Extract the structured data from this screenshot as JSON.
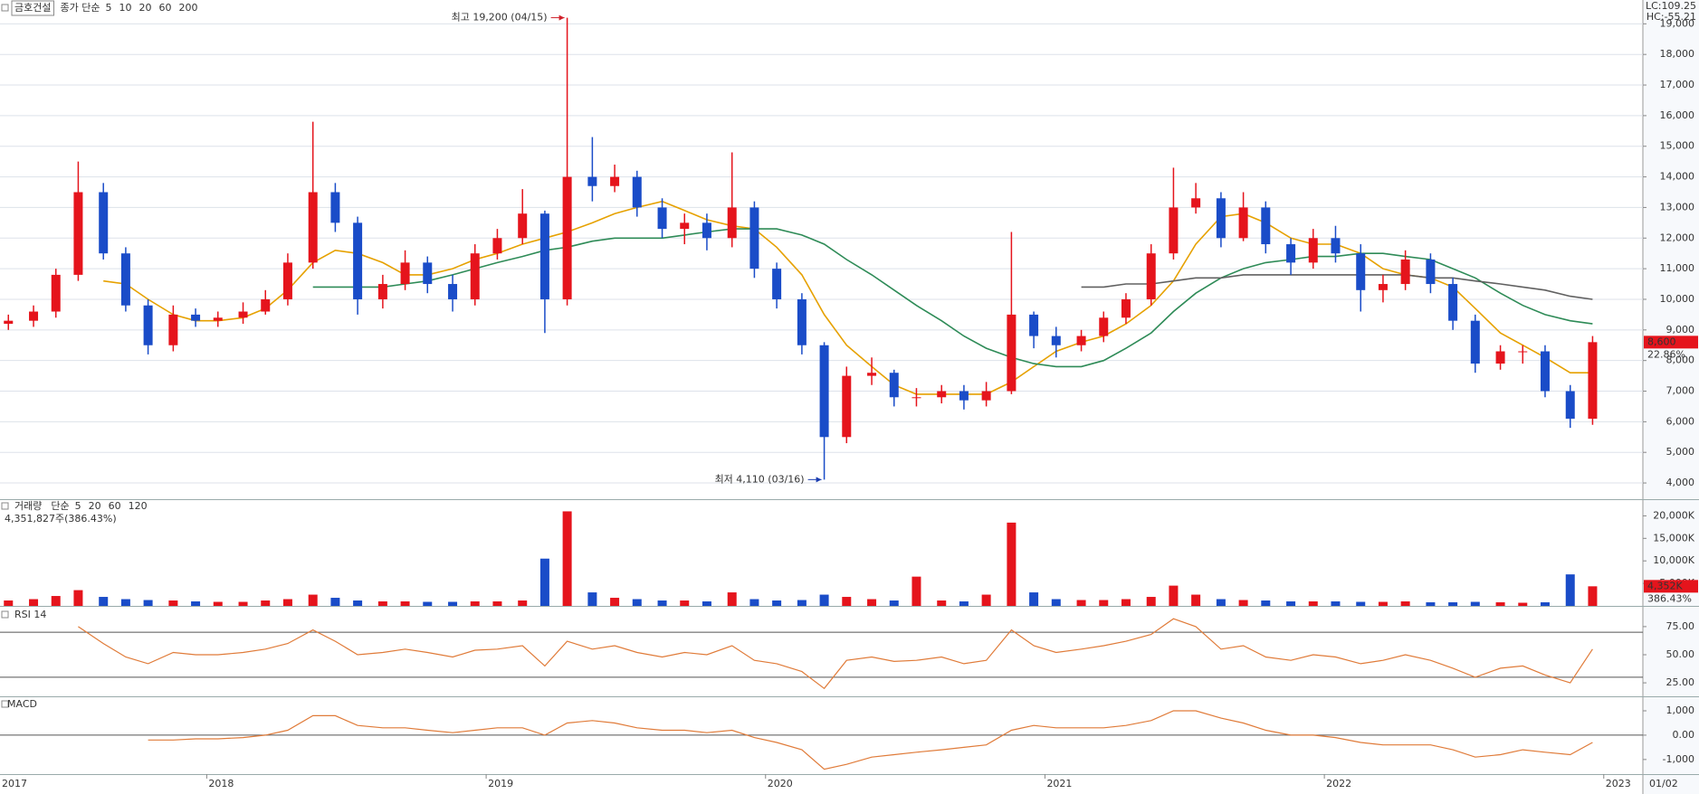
{
  "chart_data": [
    {
      "type": "candlestick",
      "title": "금호건설",
      "subtitle": "종가 단순",
      "ma_legend": [
        {
          "label": "5",
          "color": "#c000c0"
        },
        {
          "label": "10",
          "color": "#1f3a93"
        },
        {
          "label": "20",
          "color": "#e6a100"
        },
        {
          "label": "60",
          "color": "#2e8b57"
        },
        {
          "label": "200",
          "color": "#808080"
        }
      ],
      "indicators": [
        {
          "text": "LC:109.25",
          "color": "#d0202a"
        },
        {
          "text": "HC:-55.21",
          "color": "#2050c0"
        }
      ],
      "x": [
        2017.29,
        2017.38,
        2017.46,
        2017.54,
        2017.63,
        2017.71,
        2017.79,
        2017.88,
        2017.96,
        2018.04,
        2018.13,
        2018.21,
        2018.29,
        2018.38,
        2018.46,
        2018.54,
        2018.63,
        2018.71,
        2018.79,
        2018.88,
        2018.96,
        2019.04,
        2019.13,
        2019.21,
        2019.29,
        2019.38,
        2019.46,
        2019.54,
        2019.63,
        2019.71,
        2019.79,
        2019.88,
        2019.96,
        2020.04,
        2020.13,
        2020.21,
        2020.29,
        2020.38,
        2020.46,
        2020.54,
        2020.63,
        2020.71,
        2020.79,
        2020.88,
        2020.96,
        2021.04,
        2021.13,
        2021.21,
        2021.29,
        2021.38,
        2021.46,
        2021.54,
        2021.63,
        2021.71,
        2021.79,
        2021.88,
        2021.96,
        2022.04,
        2022.13,
        2022.21,
        2022.29,
        2022.38,
        2022.46,
        2022.54,
        2022.63,
        2022.71,
        2022.79,
        2022.88,
        2022.96
      ],
      "open": [
        9200,
        9300,
        9600,
        10800,
        13500,
        11500,
        9800,
        8500,
        9500,
        9300,
        9400,
        9600,
        10000,
        11200,
        13500,
        12500,
        10000,
        10500,
        11200,
        10500,
        10000,
        11500,
        12000,
        12800,
        10000,
        14000,
        13700,
        14000,
        13000,
        12300,
        12500,
        12000,
        13000,
        11000,
        10000,
        8500,
        5500,
        7500,
        7600,
        6800,
        6800,
        7000,
        6700,
        7000,
        9500,
        8800,
        8500,
        8800,
        9400,
        10000,
        11500,
        13000,
        13300,
        12000,
        13000,
        11800,
        11200,
        12000,
        11500,
        10300,
        10500,
        11300,
        10500,
        9300,
        7900,
        8300,
        8300,
        7000,
        6100
      ],
      "high": [
        9500,
        9800,
        11000,
        14500,
        13800,
        11700,
        10000,
        9800,
        9700,
        9600,
        9900,
        10300,
        11500,
        15800,
        13800,
        12700,
        10800,
        11600,
        11400,
        10800,
        11800,
        12300,
        13600,
        12900,
        19200,
        15300,
        14400,
        14200,
        13300,
        12800,
        12800,
        14800,
        13200,
        11200,
        10200,
        8600,
        7800,
        8100,
        7700,
        7100,
        7200,
        7200,
        7300,
        12200,
        9600,
        9100,
        9000,
        9600,
        10200,
        11800,
        14300,
        13800,
        13500,
        13500,
        13200,
        12000,
        12300,
        12400,
        11800,
        10800,
        11600,
        11500,
        10700,
        9500,
        8500,
        8500,
        8500,
        7200,
        8800
      ],
      "low": [
        9000,
        9100,
        9400,
        10600,
        11300,
        9600,
        8200,
        8300,
        9100,
        9100,
        9200,
        9500,
        9800,
        11000,
        12200,
        9500,
        9700,
        10300,
        10200,
        9600,
        9800,
        11300,
        11800,
        8900,
        9800,
        13200,
        13500,
        12700,
        12000,
        11800,
        11600,
        11700,
        10700,
        9700,
        8200,
        4110,
        5300,
        7200,
        6500,
        6500,
        6600,
        6400,
        6500,
        6900,
        8400,
        8100,
        8300,
        8600,
        9200,
        9800,
        11300,
        12800,
        11700,
        11900,
        11500,
        10800,
        11000,
        11200,
        9600,
        9900,
        10300,
        10200,
        9000,
        7600,
        7700,
        7900,
        6800,
        5800,
        5900
      ],
      "close": [
        9300,
        9600,
        10800,
        13500,
        11500,
        9800,
        8500,
        9500,
        9300,
        9400,
        9600,
        10000,
        11200,
        13500,
        12500,
        10000,
        10500,
        11200,
        10500,
        10000,
        11500,
        12000,
        12800,
        10000,
        14000,
        13700,
        14000,
        13000,
        12300,
        12500,
        12000,
        13000,
        11000,
        10000,
        8500,
        5500,
        7500,
        7600,
        6800,
        6800,
        7000,
        6700,
        7000,
        9500,
        8800,
        8500,
        8800,
        9400,
        10000,
        11500,
        13000,
        13300,
        12000,
        13000,
        11800,
        11200,
        12000,
        11500,
        10300,
        10500,
        11300,
        10500,
        9300,
        7900,
        8300,
        8300,
        7000,
        6100,
        8600
      ],
      "up_color": "#e5141c",
      "down_color": "#1a4cc8",
      "series": [
        {
          "color": "#e6a100",
          "values": [
            null,
            null,
            null,
            null,
            10600,
            10500,
            10000,
            9500,
            9300,
            9300,
            9400,
            9700,
            10300,
            11200,
            11600,
            11500,
            11200,
            10800,
            10800,
            11000,
            11300,
            11500,
            11800,
            12000,
            12200,
            12500,
            12800,
            13000,
            13200,
            12900,
            12600,
            12400,
            12300,
            11700,
            10800,
            9500,
            8500,
            7800,
            7200,
            6900,
            6900,
            6900,
            6900,
            7300,
            7800,
            8300,
            8600,
            8800,
            9200,
            9800,
            10600,
            11800,
            12700,
            12800,
            12500,
            12000,
            11800,
            11800,
            11500,
            11000,
            10800,
            10700,
            10400,
            9700,
            8900,
            8500,
            8100,
            7600,
            7600
          ]
        },
        {
          "color": "#2e8b57",
          "values": [
            null,
            null,
            null,
            null,
            null,
            null,
            null,
            null,
            null,
            null,
            null,
            null,
            null,
            10400,
            10400,
            10400,
            10400,
            10500,
            10600,
            10800,
            11000,
            11200,
            11400,
            11600,
            11700,
            11900,
            12000,
            12000,
            12000,
            12100,
            12200,
            12300,
            12300,
            12300,
            12100,
            11800,
            11300,
            10800,
            10300,
            9800,
            9300,
            8800,
            8400,
            8100,
            7900,
            7800,
            7800,
            8000,
            8400,
            8900,
            9600,
            10200,
            10700,
            11000,
            11200,
            11300,
            11400,
            11400,
            11500,
            11500,
            11400,
            11300,
            11000,
            10700,
            10200,
            9800,
            9500,
            9300,
            9200
          ]
        },
        {
          "color": "#606060",
          "values": [
            null,
            null,
            null,
            null,
            null,
            null,
            null,
            null,
            null,
            null,
            null,
            null,
            null,
            null,
            null,
            null,
            null,
            null,
            null,
            null,
            null,
            null,
            null,
            null,
            null,
            null,
            null,
            null,
            null,
            null,
            null,
            null,
            null,
            null,
            null,
            null,
            null,
            null,
            null,
            null,
            null,
            null,
            null,
            null,
            null,
            null,
            10400,
            10400,
            10500,
            10500,
            10600,
            10700,
            10700,
            10800,
            10800,
            10800,
            10800,
            10800,
            10800,
            10800,
            10800,
            10700,
            10700,
            10600,
            10500,
            10400,
            10300,
            10100,
            10000
          ]
        }
      ],
      "ylim": [
        3470,
        19660
      ],
      "yticks": [
        {
          "value": 4000,
          "label": "4,000"
        },
        {
          "value": 5000,
          "label": "5,000"
        },
        {
          "value": 6000,
          "label": "6,000"
        },
        {
          "value": 7000,
          "label": "7,000"
        },
        {
          "value": 8000,
          "label": "8,000"
        },
        {
          "value": 9000,
          "label": "9,000"
        },
        {
          "value": 10000,
          "label": "10,000"
        },
        {
          "value": 11000,
          "label": "11,000"
        },
        {
          "value": 12000,
          "label": "12,000"
        },
        {
          "value": 13000,
          "label": "13,000"
        },
        {
          "value": 14000,
          "label": "14,000"
        },
        {
          "value": 15000,
          "label": "15,000"
        },
        {
          "value": 16000,
          "label": "16,000"
        },
        {
          "value": 17000,
          "label": "17,000"
        },
        {
          "value": 18000,
          "label": "18,000"
        },
        {
          "value": 19000,
          "label": "19,000"
        }
      ],
      "grid": true,
      "xlim": [
        2017.26,
        2023.14
      ],
      "xticks": [
        2018,
        2019,
        2020,
        2021,
        2022,
        2023
      ],
      "x_start_label": "2017",
      "x_end_label": "01/02",
      "annotations": [
        {
          "text": "최고 19,200 (04/15)",
          "x": 2019.29,
          "y": 19200,
          "color": "#d0202a"
        },
        {
          "text": "최저 4,110 (03/16)",
          "x": 2020.21,
          "y": 4110,
          "color": "#1a3cb0"
        }
      ],
      "last_price": {
        "value": 8600,
        "label": "8,600"
      },
      "last_change": "22.86%"
    },
    {
      "type": "bar",
      "title": "거래량",
      "subtitle": "단순",
      "ma_legend": [
        {
          "label": "5",
          "color": "#c000c0"
        },
        {
          "label": "20",
          "color": "#e6a100"
        },
        {
          "label": "60",
          "color": "#2e8b57"
        },
        {
          "label": "120",
          "color": "#808080"
        }
      ],
      "summary": "4,351,827주(386.43%)",
      "values": [
        1200,
        1500,
        2200,
        3500,
        2000,
        1500,
        1300,
        1200,
        1000,
        900,
        900,
        1200,
        1500,
        2500,
        1800,
        1200,
        1000,
        1000,
        900,
        900,
        1000,
        1000,
        1200,
        10500,
        21000,
        3000,
        1800,
        1500,
        1200,
        1200,
        1000,
        3000,
        1500,
        1200,
        1300,
        2500,
        2000,
        1500,
        1200,
        6500,
        1200,
        1000,
        2500,
        18500,
        3000,
        1500,
        1300,
        1300,
        1500,
        2000,
        4500,
        2500,
        1500,
        1300,
        1200,
        1000,
        1000,
        1000,
        900,
        900,
        1000,
        800,
        800,
        900,
        800,
        700,
        800,
        7000,
        4352
      ],
      "ylim": [
        0,
        23500
      ],
      "yticks": [
        {
          "value": 5000,
          "label": "5,000K"
        },
        {
          "value": 10000,
          "label": "10,000K"
        },
        {
          "value": 15000,
          "label": "15,000K"
        },
        {
          "value": 20000,
          "label": "20,000K"
        }
      ],
      "last_volume": {
        "value": 4352,
        "label": "4,352K"
      },
      "last_change": "386.43%"
    },
    {
      "type": "line",
      "title": "RSI 14",
      "color": "#e07b39",
      "values": [
        null,
        null,
        null,
        75,
        60,
        48,
        42,
        52,
        50,
        50,
        52,
        55,
        60,
        72,
        62,
        50,
        52,
        55,
        52,
        48,
        54,
        55,
        58,
        40,
        62,
        55,
        58,
        52,
        48,
        52,
        50,
        58,
        45,
        42,
        35,
        20,
        45,
        48,
        44,
        45,
        48,
        42,
        45,
        72,
        58,
        52,
        55,
        58,
        62,
        68,
        82,
        75,
        55,
        58,
        48,
        45,
        50,
        48,
        42,
        45,
        50,
        45,
        38,
        30,
        38,
        40,
        32,
        25,
        55
      ],
      "ylim": [
        13,
        91
      ],
      "yticks": [
        {
          "value": 25,
          "label": "25.00"
        },
        {
          "value": 50,
          "label": "50.00"
        },
        {
          "value": 75,
          "label": "75.00"
        }
      ],
      "reference_lines": [
        30,
        70
      ]
    },
    {
      "type": "line",
      "title": "MACD",
      "color": "#e07b39",
      "values": [
        null,
        null,
        null,
        null,
        null,
        null,
        -200,
        -200,
        -150,
        -150,
        -100,
        0,
        200,
        800,
        800,
        400,
        300,
        300,
        200,
        100,
        200,
        300,
        300,
        0,
        500,
        600,
        500,
        300,
        200,
        200,
        100,
        200,
        -100,
        -300,
        -600,
        -1400,
        -1200,
        -900,
        -800,
        -700,
        -600,
        -500,
        -400,
        200,
        400,
        300,
        300,
        300,
        400,
        600,
        1000,
        1000,
        700,
        500,
        200,
        0,
        0,
        -100,
        -300,
        -400,
        -400,
        -400,
        -600,
        -900,
        -800,
        -600,
        -700,
        -800,
        -300
      ],
      "ylim": [
        -1600,
        1520
      ],
      "yticks": [
        {
          "value": -1000,
          "label": "-1,000"
        },
        {
          "value": 0,
          "label": "0.00"
        },
        {
          "value": 1000,
          "label": "1,000"
        }
      ],
      "reference_lines": [
        0
      ]
    }
  ]
}
